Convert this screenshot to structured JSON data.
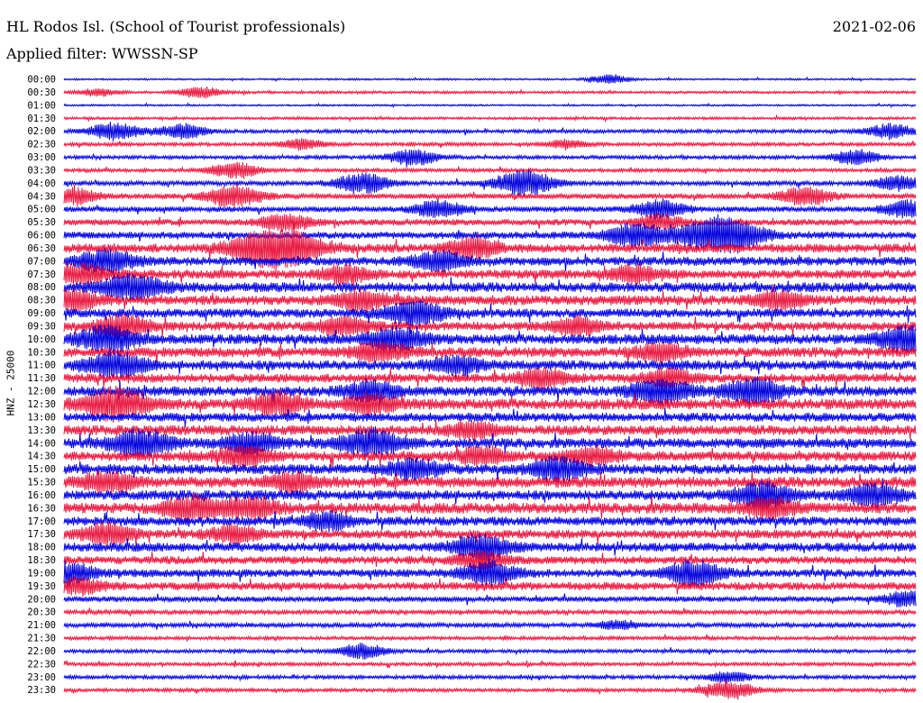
{
  "header": {
    "station": "HL Rodos Isl. (School of Tourist professionals)",
    "date": "2021-02-06",
    "filter": "Applied filter: WWSSN-SP"
  },
  "chart_data": {
    "type": "line",
    "title": "HL Rodos Isl. (School of Tourist professionals)",
    "date": "2021-02-06",
    "filter": "WWSSN-SP",
    "ylabel": "HNZ - 25000",
    "xlabel": "",
    "row_labels": [
      "00:00",
      "00:30",
      "01:00",
      "01:30",
      "02:00",
      "02:30",
      "03:00",
      "03:30",
      "04:00",
      "04:30",
      "05:00",
      "05:30",
      "06:00",
      "06:30",
      "07:00",
      "07:30",
      "08:00",
      "08:30",
      "09:00",
      "09:30",
      "10:00",
      "10:30",
      "11:00",
      "11:30",
      "12:00",
      "12:30",
      "13:00",
      "13:30",
      "14:00",
      "14:30",
      "15:00",
      "15:30",
      "16:00",
      "16:30",
      "17:00",
      "17:30",
      "18:00",
      "18:30",
      "19:00",
      "19:30",
      "20:00",
      "20:30",
      "21:00",
      "21:30",
      "22:00",
      "22:30",
      "23:00",
      "23:30"
    ],
    "row_colors": [
      "#0000dd",
      "#e8173f"
    ],
    "trace_amplitude": [
      1,
      1.5,
      1,
      1.5,
      2,
      2,
      2,
      2,
      2.5,
      3,
      3,
      3.5,
      4,
      5,
      5,
      5,
      5.5,
      5.5,
      5,
      5,
      5.5,
      5.5,
      5.5,
      5,
      5.5,
      6,
      5,
      5.5,
      5.5,
      5.5,
      5.5,
      6,
      5.5,
      6,
      5,
      5,
      5,
      4.5,
      4.5,
      4.5,
      3,
      2.5,
      2.5,
      2,
      2,
      2,
      2,
      2
    ],
    "events": [
      {
        "row": "00:00",
        "x_frac": 0.64,
        "amp": 5
      },
      {
        "row": "00:30",
        "x_frac": 0.16,
        "amp": 6
      },
      {
        "row": "00:30",
        "x_frac": 0.04,
        "amp": 4
      },
      {
        "row": "02:00",
        "x_frac": 0.06,
        "amp": 10
      },
      {
        "row": "02:00",
        "x_frac": 0.14,
        "amp": 8
      },
      {
        "row": "02:00",
        "x_frac": 0.97,
        "amp": 8
      },
      {
        "row": "02:30",
        "x_frac": 0.28,
        "amp": 6
      },
      {
        "row": "02:30",
        "x_frac": 0.59,
        "amp": 5
      },
      {
        "row": "03:00",
        "x_frac": 0.41,
        "amp": 9
      },
      {
        "row": "03:00",
        "x_frac": 0.93,
        "amp": 8
      },
      {
        "row": "03:30",
        "x_frac": 0.2,
        "amp": 9
      },
      {
        "row": "04:00",
        "x_frac": 0.35,
        "amp": 11
      },
      {
        "row": "04:00",
        "x_frac": 0.54,
        "amp": 14
      },
      {
        "row": "04:00",
        "x_frac": 0.98,
        "amp": 8
      },
      {
        "row": "04:30",
        "x_frac": 0.01,
        "amp": 9
      },
      {
        "row": "04:30",
        "x_frac": 0.2,
        "amp": 12
      },
      {
        "row": "04:30",
        "x_frac": 0.87,
        "amp": 10
      },
      {
        "row": "05:00",
        "x_frac": 0.44,
        "amp": 9
      },
      {
        "row": "05:00",
        "x_frac": 0.7,
        "amp": 10
      },
      {
        "row": "05:00",
        "x_frac": 0.99,
        "amp": 9
      },
      {
        "row": "05:30",
        "x_frac": 0.26,
        "amp": 9
      },
      {
        "row": "05:30",
        "x_frac": 0.7,
        "amp": 8
      },
      {
        "row": "06:00",
        "x_frac": 0.67,
        "amp": 12
      },
      {
        "row": "06:00",
        "x_frac": 0.75,
        "amp": 14
      },
      {
        "row": "06:00",
        "x_frac": 0.79,
        "amp": 14
      },
      {
        "row": "06:30",
        "x_frac": 0.23,
        "amp": 16
      },
      {
        "row": "06:30",
        "x_frac": 0.27,
        "amp": 14
      },
      {
        "row": "06:30",
        "x_frac": 0.48,
        "amp": 10
      },
      {
        "row": "07:00",
        "x_frac": 0.05,
        "amp": 12
      },
      {
        "row": "07:00",
        "x_frac": 0.44,
        "amp": 10
      },
      {
        "row": "07:30",
        "x_frac": 0.02,
        "amp": 10
      },
      {
        "row": "07:30",
        "x_frac": 0.33,
        "amp": 9
      },
      {
        "row": "07:30",
        "x_frac": 0.67,
        "amp": 9
      },
      {
        "row": "08:00",
        "x_frac": 0.08,
        "amp": 14
      },
      {
        "row": "08:30",
        "x_frac": 0.01,
        "amp": 10
      },
      {
        "row": "08:30",
        "x_frac": 0.35,
        "amp": 10
      },
      {
        "row": "08:30",
        "x_frac": 0.84,
        "amp": 9
      },
      {
        "row": "09:00",
        "x_frac": 0.41,
        "amp": 13
      },
      {
        "row": "09:30",
        "x_frac": 0.07,
        "amp": 11
      },
      {
        "row": "09:30",
        "x_frac": 0.33,
        "amp": 10
      },
      {
        "row": "09:30",
        "x_frac": 0.6,
        "amp": 9
      },
      {
        "row": "10:00",
        "x_frac": 0.05,
        "amp": 13
      },
      {
        "row": "10:00",
        "x_frac": 0.39,
        "amp": 12
      },
      {
        "row": "10:00",
        "x_frac": 0.99,
        "amp": 14
      },
      {
        "row": "10:30",
        "x_frac": 0.37,
        "amp": 10
      },
      {
        "row": "10:30",
        "x_frac": 0.7,
        "amp": 9
      },
      {
        "row": "11:00",
        "x_frac": 0.06,
        "amp": 13
      },
      {
        "row": "11:00",
        "x_frac": 0.46,
        "amp": 9
      },
      {
        "row": "11:30",
        "x_frac": 0.56,
        "amp": 10
      },
      {
        "row": "11:30",
        "x_frac": 0.71,
        "amp": 9
      },
      {
        "row": "12:00",
        "x_frac": 0.36,
        "amp": 10
      },
      {
        "row": "12:00",
        "x_frac": 0.7,
        "amp": 13
      },
      {
        "row": "12:00",
        "x_frac": 0.81,
        "amp": 13
      },
      {
        "row": "12:30",
        "x_frac": 0.06,
        "amp": 16
      },
      {
        "row": "12:30",
        "x_frac": 0.25,
        "amp": 11
      },
      {
        "row": "12:30",
        "x_frac": 0.36,
        "amp": 10
      },
      {
        "row": "13:30",
        "x_frac": 0.48,
        "amp": 9
      },
      {
        "row": "14:00",
        "x_frac": 0.09,
        "amp": 14
      },
      {
        "row": "14:00",
        "x_frac": 0.22,
        "amp": 11
      },
      {
        "row": "14:00",
        "x_frac": 0.36,
        "amp": 14
      },
      {
        "row": "14:30",
        "x_frac": 0.21,
        "amp": 10
      },
      {
        "row": "14:30",
        "x_frac": 0.49,
        "amp": 9
      },
      {
        "row": "14:30",
        "x_frac": 0.62,
        "amp": 9
      },
      {
        "row": "15:00",
        "x_frac": 0.41,
        "amp": 10
      },
      {
        "row": "15:00",
        "x_frac": 0.58,
        "amp": 12
      },
      {
        "row": "15:30",
        "x_frac": 0.05,
        "amp": 10
      },
      {
        "row": "15:30",
        "x_frac": 0.27,
        "amp": 9
      },
      {
        "row": "16:00",
        "x_frac": 0.82,
        "amp": 13
      },
      {
        "row": "16:00",
        "x_frac": 0.95,
        "amp": 11
      },
      {
        "row": "16:30",
        "x_frac": 0.15,
        "amp": 12
      },
      {
        "row": "16:30",
        "x_frac": 0.22,
        "amp": 11
      },
      {
        "row": "16:30",
        "x_frac": 0.83,
        "amp": 10
      },
      {
        "row": "17:00",
        "x_frac": 0.31,
        "amp": 9
      },
      {
        "row": "17:30",
        "x_frac": 0.05,
        "amp": 11
      },
      {
        "row": "17:30",
        "x_frac": 0.2,
        "amp": 9
      },
      {
        "row": "18:00",
        "x_frac": 0.49,
        "amp": 13
      },
      {
        "row": "18:30",
        "x_frac": 0.49,
        "amp": 9
      },
      {
        "row": "19:00",
        "x_frac": 0.0,
        "amp": 12
      },
      {
        "row": "19:00",
        "x_frac": 0.5,
        "amp": 12
      },
      {
        "row": "19:00",
        "x_frac": 0.74,
        "amp": 13
      },
      {
        "row": "19:30",
        "x_frac": 0.02,
        "amp": 8
      },
      {
        "row": "20:00",
        "x_frac": 0.99,
        "amp": 8
      },
      {
        "row": "21:00",
        "x_frac": 0.65,
        "amp": 5
      },
      {
        "row": "22:00",
        "x_frac": 0.35,
        "amp": 8
      },
      {
        "row": "23:00",
        "x_frac": 0.78,
        "amp": 6
      },
      {
        "row": "23:30",
        "x_frac": 0.78,
        "amp": 10
      }
    ],
    "grid": false,
    "legend": "none"
  }
}
